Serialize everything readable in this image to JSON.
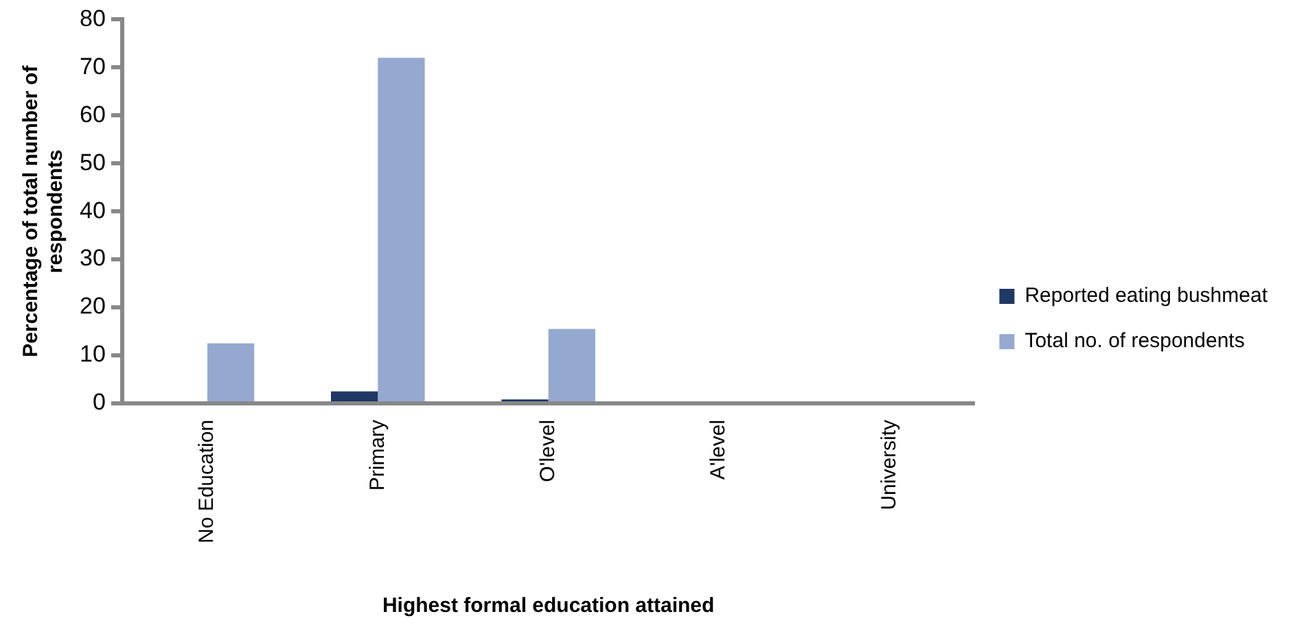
{
  "chart_data": {
    "type": "bar",
    "xlabel": "Highest formal education attained",
    "ylabel": "Percentage of total number of respondents",
    "categories": [
      "No Education",
      "Primary",
      "O'level",
      "A'level",
      "University"
    ],
    "series": [
      {
        "name": "Reported eating bushmeat",
        "color": "#1f3864",
        "values": [
          0,
          2.5,
          0.8,
          0,
          0
        ]
      },
      {
        "name": "Total no. of respondents",
        "color": "#95a9d0",
        "values": [
          12.5,
          72,
          15.5,
          0,
          0
        ]
      }
    ],
    "ylim": [
      0,
      80
    ],
    "yticks": [
      0,
      10,
      20,
      30,
      40,
      50,
      60,
      70,
      80
    ],
    "grid": false,
    "legend": "right"
  }
}
